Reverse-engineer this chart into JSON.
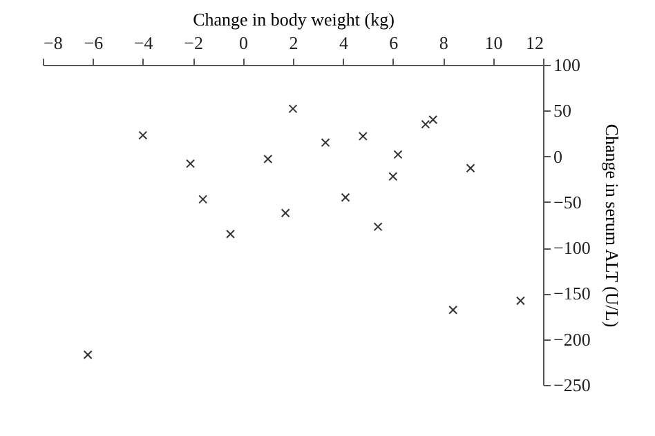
{
  "chart_data": {
    "type": "scatter",
    "xlabel": "Change in body weight (kg)",
    "ylabel": "Change in serum ALT (U/L)",
    "x": [
      -6.2,
      -4.0,
      -2.1,
      -1.6,
      -0.5,
      1.0,
      1.7,
      2.0,
      3.3,
      4.1,
      4.8,
      5.4,
      6.0,
      6.2,
      7.3,
      7.6,
      9.1,
      8.4,
      11.1
    ],
    "values": [
      -217,
      23,
      -8,
      -47,
      -85,
      -3,
      -62,
      52,
      15,
      -45,
      22,
      -77,
      -22,
      2,
      35,
      40,
      -13,
      -168,
      -158
    ],
    "color": "#333333",
    "marker": "cross",
    "grid": false,
    "xlim": [
      -8,
      12
    ],
    "xticks": [
      -8,
      -6,
      -4,
      -2,
      0,
      2,
      4,
      6,
      8,
      10,
      12
    ],
    "ylim": [
      -250,
      100
    ],
    "yticks": [
      -250,
      -200,
      -150,
      -100,
      -50,
      0,
      50,
      100
    ]
  }
}
